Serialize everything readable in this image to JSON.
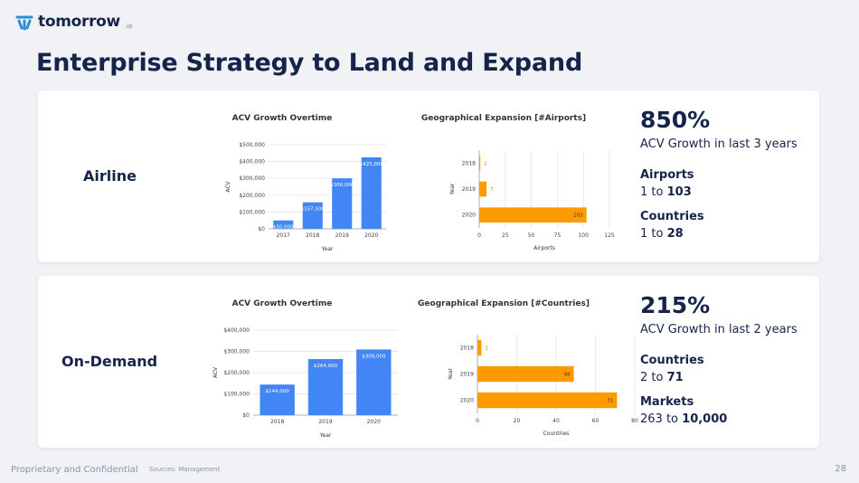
{
  "header": {
    "logo_text": "tomorrow",
    "logo_suffix": ".io",
    "title": "Enterprise Strategy to Land and Expand"
  },
  "colors": {
    "bar_blue": "#4285f4",
    "bar_orange": "#ff9900",
    "navy": "#16244a"
  },
  "sections": [
    {
      "segment": "Airline",
      "acv_chart": {
        "title": "ACV Growth Overtime",
        "xlabel": "Year",
        "ylabel": "ACV"
      },
      "geo_chart": {
        "title": "Geographical Expansion [#Airports]",
        "xlabel": "Airports",
        "ylabel": "Year"
      },
      "metrics": {
        "big": "850%",
        "big_sub": "ACV Growth in last 3 years",
        "m1_label": "Airports",
        "m1_from": "1",
        "m1_to": "103",
        "m2_label": "Countries",
        "m2_from": "1",
        "m2_to": "28"
      }
    },
    {
      "segment": "On-Demand",
      "acv_chart": {
        "title": "ACV Growth Overtime",
        "xlabel": "Year",
        "ylabel": "ACV"
      },
      "geo_chart": {
        "title": "Geographical Expansion [#Countries]",
        "xlabel": "Countries",
        "ylabel": "Year"
      },
      "metrics": {
        "big": "215%",
        "big_sub": "ACV Growth in last 2 years",
        "m1_label": "Countries",
        "m1_from": "2",
        "m1_to": "71",
        "m2_label": "Markets",
        "m2_from": "263",
        "m2_to": "10,000"
      }
    }
  ],
  "chart_data": [
    {
      "type": "bar",
      "title": "ACV Growth Overtime",
      "categories": [
        "2017",
        "2018",
        "2019",
        "2020"
      ],
      "values": [
        50000,
        157500,
        300000,
        425000
      ],
      "value_labels": [
        "$50,000",
        "$157,500",
        "$300,000",
        "$425,000"
      ],
      "yticks": [
        0,
        100000,
        200000,
        300000,
        400000,
        500000
      ],
      "ytick_labels": [
        "$0",
        "$100,000",
        "$200,000",
        "$300,000",
        "$400,000",
        "$500,000"
      ],
      "ylim": [
        0,
        500000
      ],
      "xlabel": "Year",
      "ylabel": "ACV"
    },
    {
      "type": "bar",
      "orientation": "horizontal",
      "title": "Geographical Expansion [#Airports]",
      "categories": [
        "2018",
        "2019",
        "2020"
      ],
      "values": [
        1,
        7,
        103
      ],
      "value_labels": [
        "1",
        "7",
        "103"
      ],
      "xticks": [
        0,
        25,
        50,
        75,
        100,
        125
      ],
      "xtick_labels": [
        "0",
        "25",
        "50",
        "75",
        "100",
        "125"
      ],
      "xlim": [
        0,
        125
      ],
      "xlabel": "Airports",
      "ylabel": "Year"
    },
    {
      "type": "bar",
      "title": "ACV Growth Overtime",
      "categories": [
        "2018",
        "2019",
        "2020"
      ],
      "values": [
        144000,
        264000,
        309000
      ],
      "value_labels": [
        "$144,000",
        "$264,000",
        "$309,000"
      ],
      "yticks": [
        0,
        100000,
        200000,
        300000,
        400000
      ],
      "ytick_labels": [
        "$0",
        "$100,000",
        "$200,000",
        "$300,000",
        "$400,000"
      ],
      "ylim": [
        0,
        400000
      ],
      "xlabel": "Year",
      "ylabel": "ACV"
    },
    {
      "type": "bar",
      "orientation": "horizontal",
      "title": "Geographical Expansion [#Countries]",
      "categories": [
        "2018",
        "2019",
        "2020"
      ],
      "values": [
        2,
        49,
        71
      ],
      "value_labels": [
        "2",
        "49",
        "71"
      ],
      "xticks": [
        0,
        20,
        40,
        60,
        80
      ],
      "xtick_labels": [
        "0",
        "20",
        "40",
        "60",
        "80"
      ],
      "xlim": [
        0,
        80
      ],
      "xlabel": "Countries",
      "ylabel": "Year"
    }
  ],
  "footer": {
    "left": "Proprietary and Confidential",
    "sources": "Sources: Management",
    "page": "28"
  }
}
